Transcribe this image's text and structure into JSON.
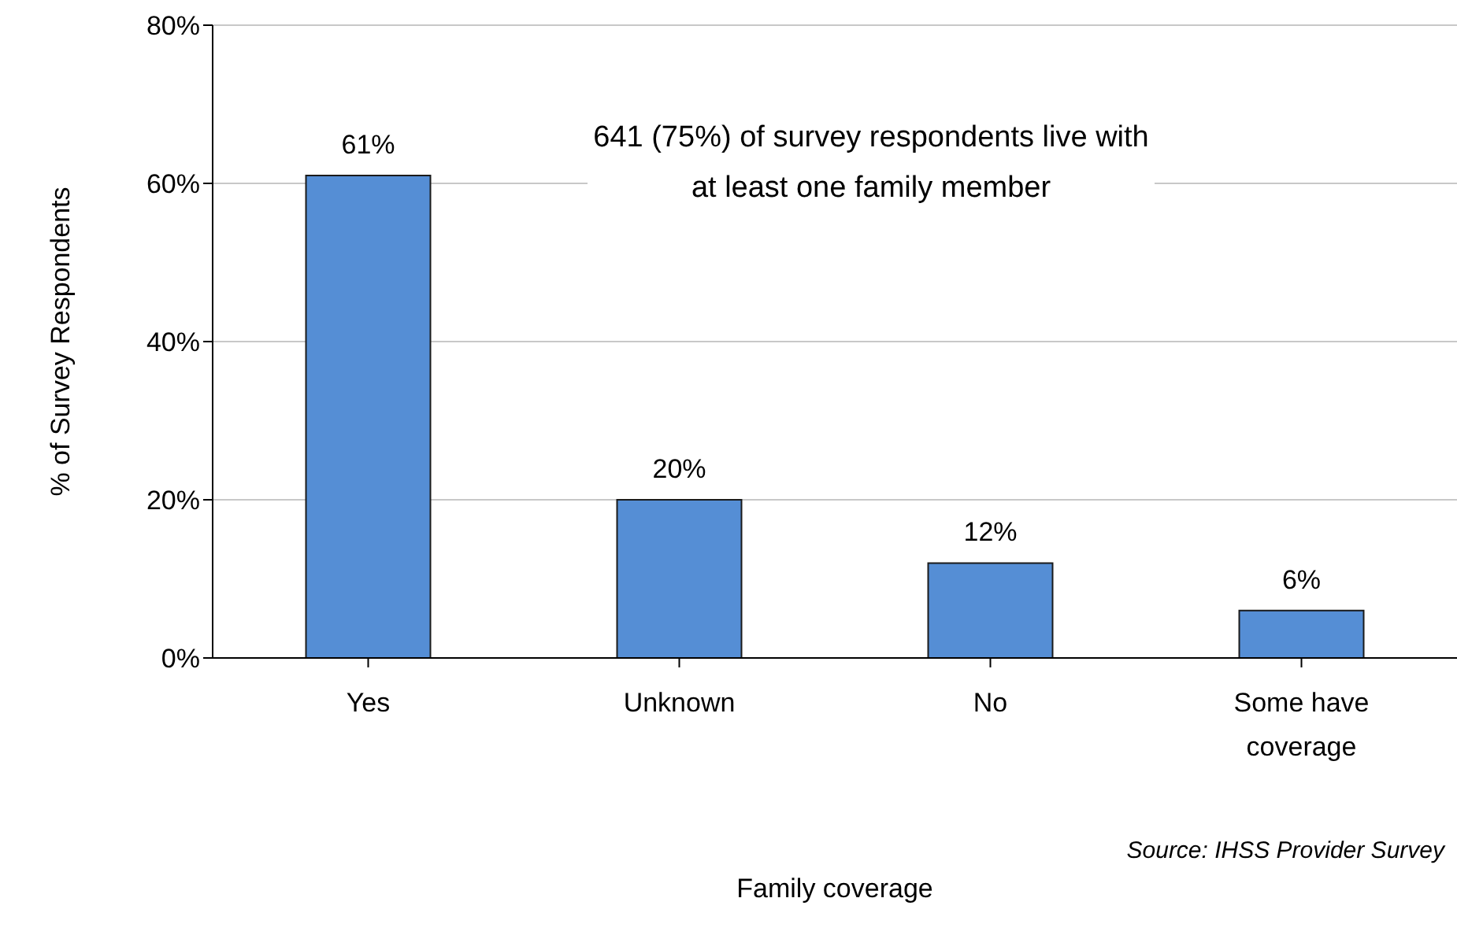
{
  "chart_data": {
    "type": "bar",
    "ylabel": "% of Survey Respondents",
    "xlabel": "Family coverage",
    "categories": [
      "Yes",
      "Unknown",
      "No",
      "Some have coverage"
    ],
    "values": [
      61,
      20,
      12,
      6
    ],
    "value_labels": [
      "61%",
      "20%",
      "12%",
      "6%"
    ],
    "color": "#558ed5",
    "ylim": [
      0,
      80
    ],
    "yticks": [
      {
        "value": 0,
        "label": "0%"
      },
      {
        "value": 20,
        "label": "20%"
      },
      {
        "value": 40,
        "label": "40%"
      },
      {
        "value": 60,
        "label": "60%"
      },
      {
        "value": 80,
        "label": "80%"
      }
    ],
    "grid": "y",
    "annotations": [
      "641 (75%) of survey respondents live with at least one family member",
      "Source: IHSS Provider Survey"
    ]
  }
}
